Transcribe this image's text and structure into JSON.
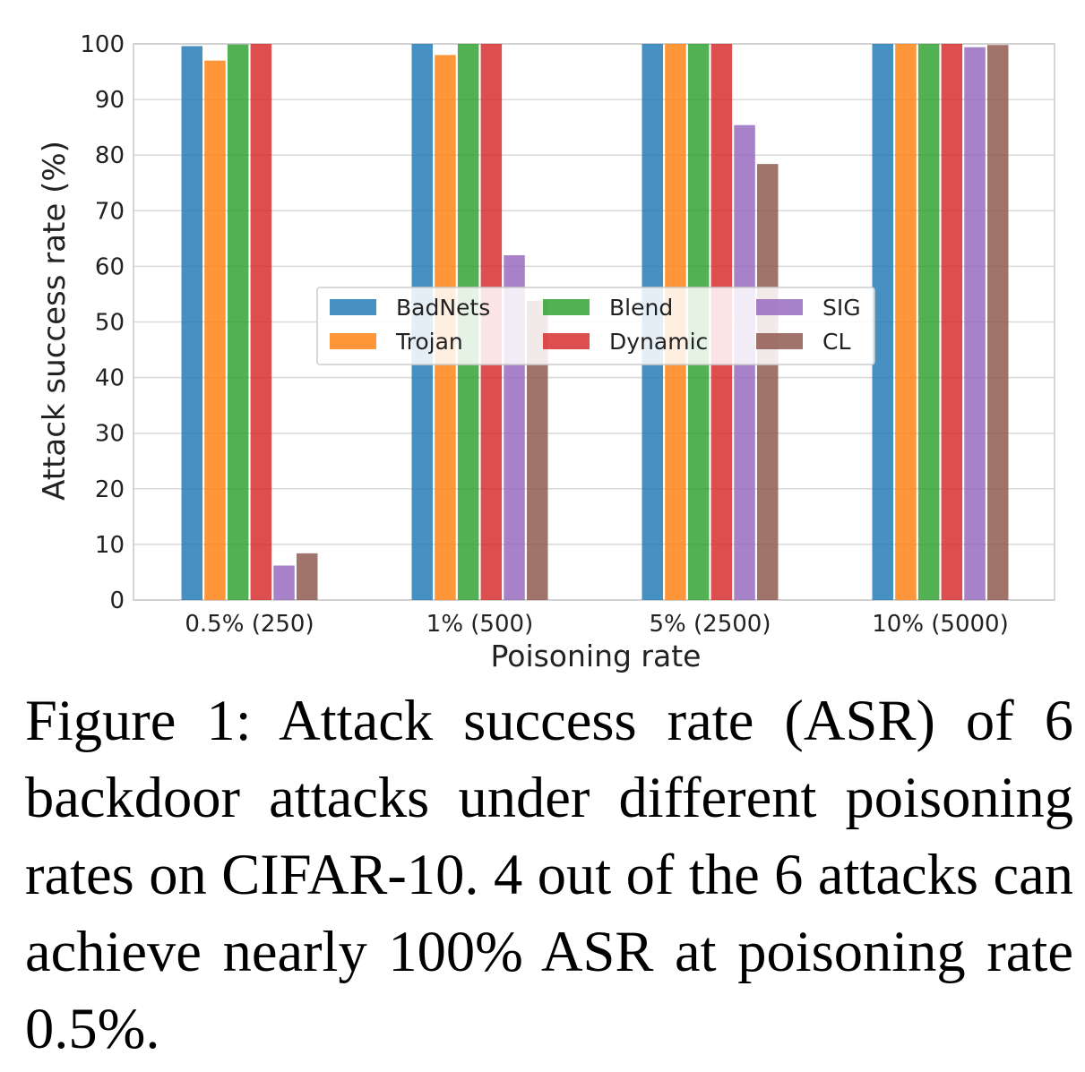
{
  "chart_data": {
    "type": "bar",
    "xlabel": "Poisoning rate",
    "ylabel": "Attack success rate (%)",
    "ylim": [
      0,
      100
    ],
    "yticks": [
      0,
      10,
      20,
      30,
      40,
      50,
      60,
      70,
      80,
      90,
      100
    ],
    "grid": true,
    "legend_position": "center",
    "categories": [
      "0.5% (250)",
      "1% (500)",
      "5% (2500)",
      "10% (5000)"
    ],
    "series": [
      {
        "name": "BadNets",
        "color": "#1f77b4",
        "values": [
          99.6,
          100,
          100,
          100
        ]
      },
      {
        "name": "Trojan",
        "color": "#ff7f0e",
        "values": [
          97.0,
          98.0,
          100,
          100
        ]
      },
      {
        "name": "Blend",
        "color": "#2ca02c",
        "values": [
          99.9,
          100,
          100,
          100
        ]
      },
      {
        "name": "Dynamic",
        "color": "#d62728",
        "values": [
          100,
          100,
          100,
          100
        ]
      },
      {
        "name": "SIG",
        "color": "#9467bd",
        "values": [
          6.2,
          62.0,
          85.4,
          99.4
        ]
      },
      {
        "name": "CL",
        "color": "#8c564b",
        "values": [
          8.4,
          53.8,
          78.4,
          99.8
        ]
      }
    ]
  },
  "caption": "Figure 1: Attack success rate (ASR) of 6 backdoor attacks under different poisoning rates on CIFAR-10. 4 out of the 6 attacks can achieve nearly 100% ASR at poisoning rate 0.5%."
}
